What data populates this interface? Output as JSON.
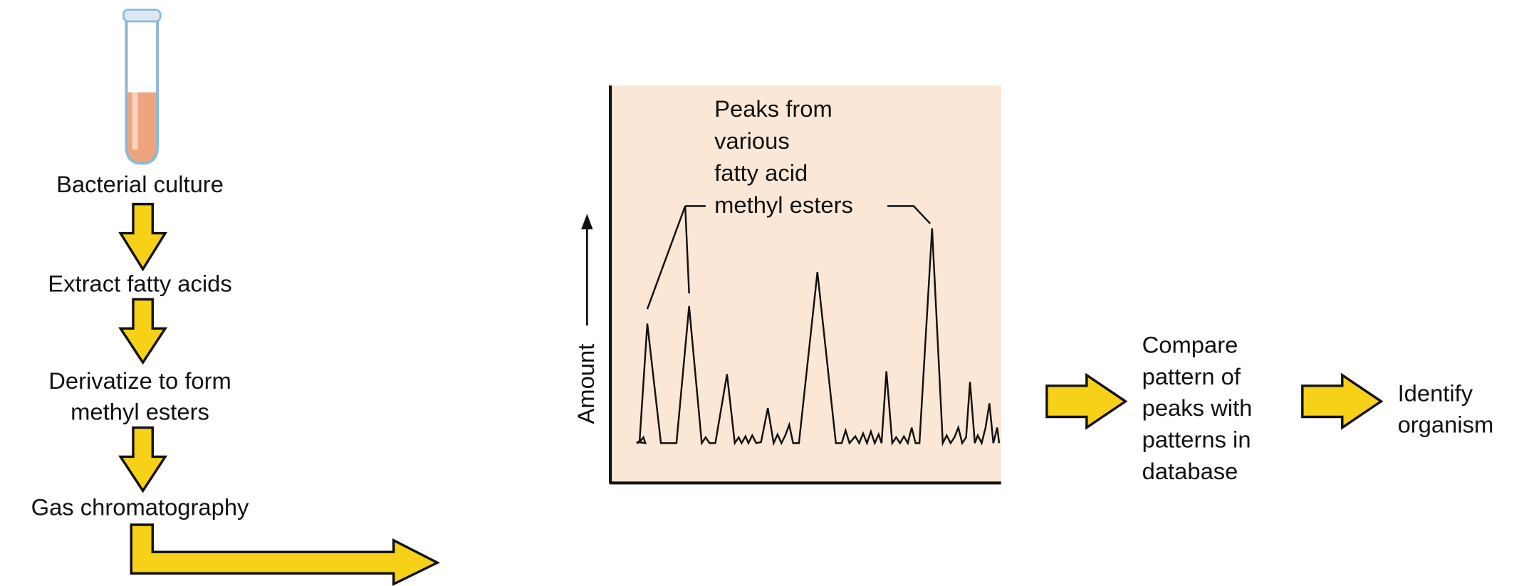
{
  "steps": [
    {
      "lines": [
        "Bacterial culture"
      ]
    },
    {
      "lines": [
        "Extract fatty acids"
      ]
    },
    {
      "lines": [
        "Derivatize to form",
        "methyl esters"
      ]
    },
    {
      "lines": [
        "Gas chromatography"
      ]
    }
  ],
  "chromatogram": {
    "annotation": [
      "Peaks from",
      "various",
      "fatty acid",
      "methyl esters"
    ],
    "y_axis_label": "Amount"
  },
  "compare": {
    "lines": [
      "Compare",
      "pattern of",
      "peaks with",
      "patterns in",
      "database"
    ]
  },
  "result": {
    "lines": [
      "Identify",
      "organism"
    ]
  }
}
